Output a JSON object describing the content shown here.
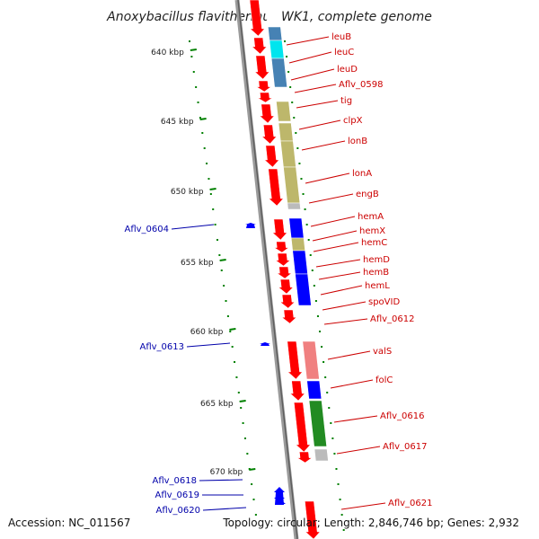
{
  "title": "Anoxybacillus flavithermus WK1, complete genome",
  "footer": {
    "accession": "Accession: NC_011567",
    "topology": "Topology: circular; Length: 2,846,746 bp; Genes: 2,932"
  },
  "colors": {
    "backbone": "#888888",
    "forward_arrow": "#ff0000",
    "reverse_arrow": "#0000ff",
    "forward_label": "#cc0000",
    "reverse_label": "#0000aa",
    "tick": "#008000",
    "cog_steel_blue": "#4682b4",
    "cog_cyan": "#00e5ee",
    "cog_khaki": "#bdb76b",
    "cog_blue": "#0000ff",
    "cog_salmon": "#f08080",
    "cog_green": "#228b22",
    "cog_gray": "#bbbbbb",
    "cog_white": "#ffffff"
  },
  "kbp_ticks": [
    "640 kbp",
    "645 kbp",
    "650 kbp",
    "655 kbp",
    "660 kbp",
    "665 kbp",
    "670 kbp"
  ],
  "forward_genes": [
    "leuB",
    "leuC",
    "leuD",
    "Aflv_0598",
    "tig",
    "clpX",
    "lonB",
    "lonA",
    "engB",
    "hemA",
    "hemX",
    "hemC",
    "hemD",
    "hemB",
    "hemL",
    "spoVID",
    "Aflv_0612",
    "valS",
    "folC",
    "Aflv_0616",
    "Aflv_0617",
    "Aflv_0621"
  ],
  "reverse_genes": [
    "Aflv_0604",
    "Aflv_0613",
    "Aflv_0618",
    "Aflv_0619",
    "Aflv_0620"
  ]
}
